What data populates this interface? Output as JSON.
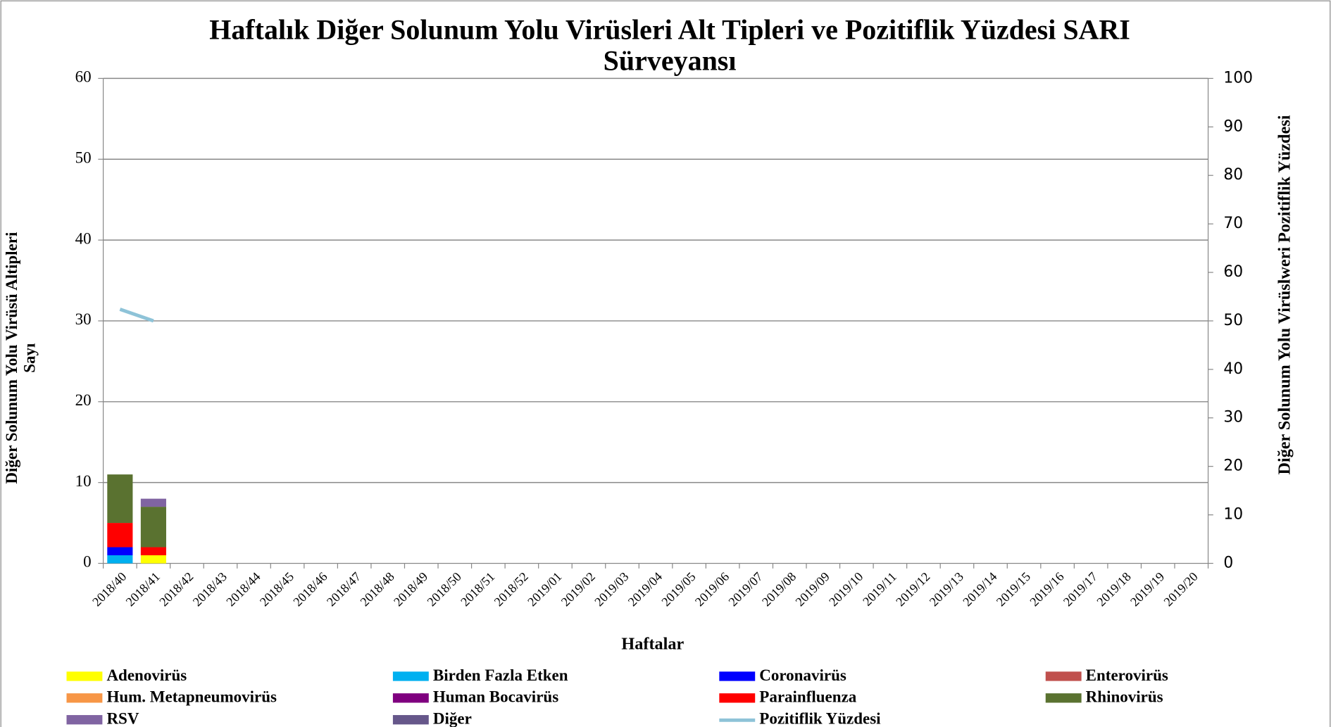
{
  "chart_data": {
    "type": "bar",
    "title": "Haftalık Diğer Solunum Yolu Virüsleri Alt Tipleri ve Pozitiflik Yüzdesi SARI Sürveyansı",
    "x_label": "Haftalar",
    "y_label": "Diğer Solunum Yolu Virüsü Altipleri Sayı",
    "y2_label": "Diğer Solunum Yolu Virüslweri Pozitiflik Yüzdesi",
    "categories": [
      "2018/40",
      "2018/41",
      "2018/42",
      "2018/43",
      "2018/44",
      "2018/45",
      "2018/46",
      "2018/47",
      "2018/48",
      "2018/49",
      "2018/50",
      "2018/51",
      "2018/52",
      "2019/01",
      "2019/02",
      "2019/03",
      "2019/04",
      "2019/05",
      "2019/06",
      "2019/07",
      "2019/08",
      "2019/09",
      "2019/10",
      "2019/11",
      "2019/12",
      "2019/13",
      "2019/14",
      "2019/15",
      "2019/16",
      "2019/17",
      "2019/18",
      "2019/19",
      "2019/20"
    ],
    "ylim": [
      0,
      60
    ],
    "yticks": [
      0,
      10,
      20,
      30,
      40,
      50,
      60
    ],
    "y2lim": [
      0,
      100
    ],
    "y2ticks": [
      0,
      10,
      20,
      30,
      40,
      50,
      60,
      70,
      80,
      90,
      100
    ],
    "grid": true,
    "stacked": true,
    "series": [
      {
        "name": "Adenovirüs",
        "color": "#ffff00",
        "values": [
          null,
          1,
          null,
          null,
          null,
          null,
          null,
          null,
          null,
          null,
          null,
          null,
          null,
          null,
          null,
          null,
          null,
          null,
          null,
          null,
          null,
          null,
          null,
          null,
          null,
          null,
          null,
          null,
          null,
          null,
          null,
          null,
          null
        ]
      },
      {
        "name": "Birden Fazla Etken",
        "color": "#00b0f0",
        "values": [
          1,
          null,
          null,
          null,
          null,
          null,
          null,
          null,
          null,
          null,
          null,
          null,
          null,
          null,
          null,
          null,
          null,
          null,
          null,
          null,
          null,
          null,
          null,
          null,
          null,
          null,
          null,
          null,
          null,
          null,
          null,
          null,
          null
        ]
      },
      {
        "name": "Coronavirüs",
        "color": "#0000ff",
        "values": [
          1,
          null,
          null,
          null,
          null,
          null,
          null,
          null,
          null,
          null,
          null,
          null,
          null,
          null,
          null,
          null,
          null,
          null,
          null,
          null,
          null,
          null,
          null,
          null,
          null,
          null,
          null,
          null,
          null,
          null,
          null,
          null,
          null
        ]
      },
      {
        "name": "Enterovirüs",
        "color": "#c0504d",
        "values": [
          null,
          null,
          null,
          null,
          null,
          null,
          null,
          null,
          null,
          null,
          null,
          null,
          null,
          null,
          null,
          null,
          null,
          null,
          null,
          null,
          null,
          null,
          null,
          null,
          null,
          null,
          null,
          null,
          null,
          null,
          null,
          null,
          null
        ]
      },
      {
        "name": "Hum. Metapneumovirüs",
        "color": "#f79646",
        "values": [
          null,
          null,
          null,
          null,
          null,
          null,
          null,
          null,
          null,
          null,
          null,
          null,
          null,
          null,
          null,
          null,
          null,
          null,
          null,
          null,
          null,
          null,
          null,
          null,
          null,
          null,
          null,
          null,
          null,
          null,
          null,
          null,
          null
        ]
      },
      {
        "name": "Human Bocavirüs",
        "color": "#7f007f",
        "values": [
          null,
          null,
          null,
          null,
          null,
          null,
          null,
          null,
          null,
          null,
          null,
          null,
          null,
          null,
          null,
          null,
          null,
          null,
          null,
          null,
          null,
          null,
          null,
          null,
          null,
          null,
          null,
          null,
          null,
          null,
          null,
          null,
          null
        ]
      },
      {
        "name": "Parainfluenza",
        "color": "#ff0000",
        "values": [
          3,
          1,
          null,
          null,
          null,
          null,
          null,
          null,
          null,
          null,
          null,
          null,
          null,
          null,
          null,
          null,
          null,
          null,
          null,
          null,
          null,
          null,
          null,
          null,
          null,
          null,
          null,
          null,
          null,
          null,
          null,
          null,
          null
        ]
      },
      {
        "name": "Rhinovirüs",
        "color": "#5a7230",
        "values": [
          6,
          5,
          null,
          null,
          null,
          null,
          null,
          null,
          null,
          null,
          null,
          null,
          null,
          null,
          null,
          null,
          null,
          null,
          null,
          null,
          null,
          null,
          null,
          null,
          null,
          null,
          null,
          null,
          null,
          null,
          null,
          null,
          null
        ]
      },
      {
        "name": "RSV",
        "color": "#8064a2",
        "values": [
          null,
          1,
          null,
          null,
          null,
          null,
          null,
          null,
          null,
          null,
          null,
          null,
          null,
          null,
          null,
          null,
          null,
          null,
          null,
          null,
          null,
          null,
          null,
          null,
          null,
          null,
          null,
          null,
          null,
          null,
          null,
          null,
          null
        ]
      },
      {
        "name": "Diğer",
        "color": "#66578a",
        "values": [
          null,
          null,
          null,
          null,
          null,
          null,
          null,
          null,
          null,
          null,
          null,
          null,
          null,
          null,
          null,
          null,
          null,
          null,
          null,
          null,
          null,
          null,
          null,
          null,
          null,
          null,
          null,
          null,
          null,
          null,
          null,
          null,
          null
        ]
      },
      {
        "name": "Pozitiflik Yüzdesi",
        "color": "#8ec3d8",
        "type": "line",
        "axis": "y2",
        "values": [
          52.4,
          50,
          null,
          null,
          null,
          null,
          null,
          null,
          null,
          null,
          null,
          null,
          null,
          null,
          null,
          null,
          null,
          null,
          null,
          null,
          null,
          null,
          null,
          null,
          null,
          null,
          null,
          null,
          null,
          null,
          null,
          null,
          null
        ]
      }
    ]
  }
}
